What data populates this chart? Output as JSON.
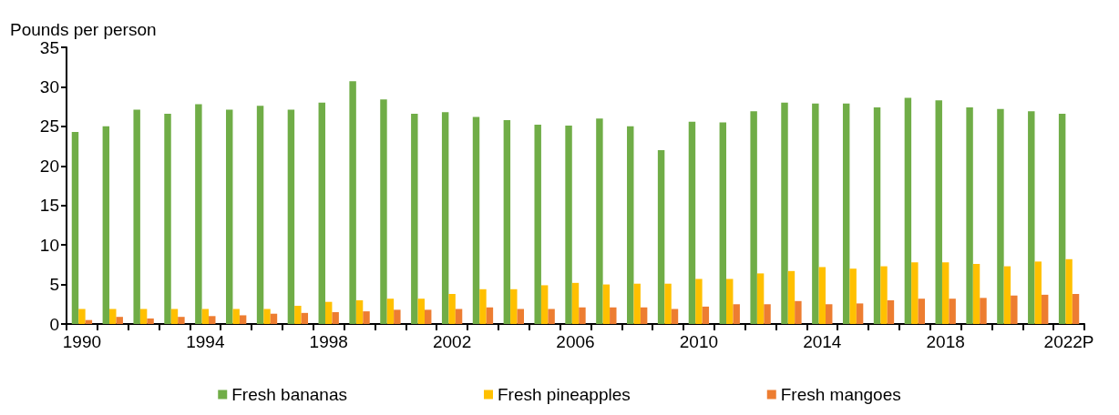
{
  "chart_data": {
    "type": "bar",
    "ylabel": "Pounds per person",
    "categories": [
      "1990",
      null,
      null,
      null,
      "1994",
      null,
      null,
      null,
      "1998",
      null,
      null,
      null,
      "2002",
      null,
      null,
      null,
      "2006",
      null,
      null,
      null,
      "2010",
      null,
      null,
      null,
      "2014",
      null,
      null,
      null,
      "2018",
      null,
      null,
      null,
      "2022P"
    ],
    "series": [
      {
        "name": "Fresh bananas",
        "color": "#70ad47",
        "values": [
          24.3,
          25.0,
          27.1,
          26.6,
          27.8,
          27.1,
          27.6,
          27.1,
          28.0,
          30.7,
          28.4,
          26.6,
          26.8,
          26.2,
          25.8,
          25.2,
          25.1,
          26.0,
          25.0,
          22.0,
          25.6,
          25.5,
          26.9,
          28.0,
          27.9,
          27.9,
          27.4,
          28.6,
          28.3,
          27.4,
          27.2,
          26.9,
          26.6
        ]
      },
      {
        "name": "Fresh pineapples",
        "color": "#ffc000",
        "values": [
          1.9,
          1.9,
          1.9,
          1.9,
          1.9,
          1.9,
          1.9,
          2.3,
          2.8,
          3.0,
          3.2,
          3.2,
          3.8,
          4.4,
          4.4,
          4.9,
          5.2,
          5.0,
          5.1,
          5.1,
          5.7,
          5.7,
          6.4,
          6.7,
          7.2,
          7.0,
          7.3,
          7.8,
          7.8,
          7.6,
          7.3,
          7.9,
          8.2
        ]
      },
      {
        "name": "Fresh mangoes",
        "color": "#ed7d31",
        "values": [
          0.5,
          0.9,
          0.7,
          0.9,
          1.0,
          1.1,
          1.3,
          1.4,
          1.5,
          1.6,
          1.8,
          1.8,
          1.9,
          2.1,
          1.9,
          1.9,
          2.1,
          2.1,
          2.1,
          1.9,
          2.2,
          2.5,
          2.5,
          2.9,
          2.5,
          2.6,
          3.0,
          3.2,
          3.2,
          3.3,
          3.6,
          3.7,
          3.8
        ]
      }
    ],
    "ylim": [
      0,
      35
    ],
    "yticks": [
      0,
      5,
      10,
      15,
      20,
      25,
      30,
      35
    ],
    "grid": false,
    "legend": "bottom"
  }
}
